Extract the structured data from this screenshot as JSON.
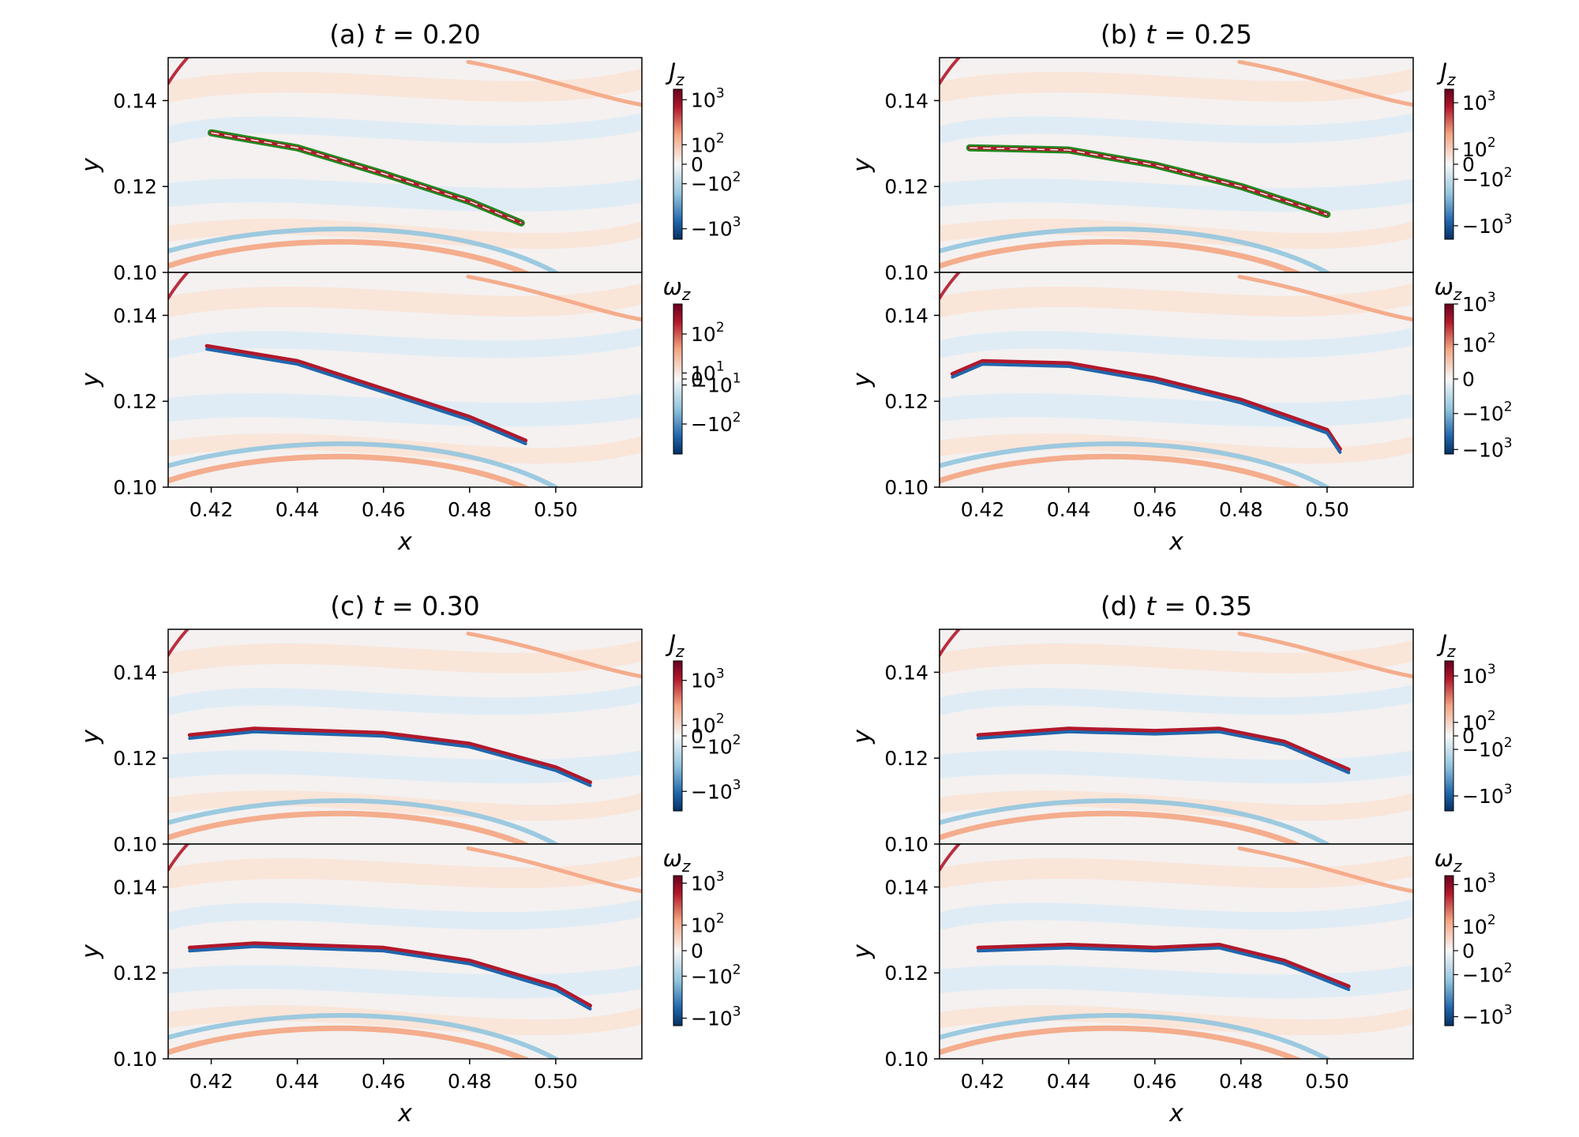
{
  "chart_data": [
    {
      "type": "heatmap",
      "title": "(a) t = 0.20",
      "title_prefix": "(a)",
      "title_t": "t",
      "title_value": "= 0.20",
      "xlabel": "x",
      "ylabel": "y",
      "xlim": [
        0.41,
        0.52
      ],
      "ylim": [
        0.1,
        0.15
      ],
      "x_ticks": [
        "0.42",
        "0.44",
        "0.46",
        "0.48",
        "0.50"
      ],
      "y_ticks": [
        "0.10",
        "0.12",
        "0.14"
      ],
      "panels": [
        {
          "field": "J_z",
          "label_main": "J",
          "label_sub": "z",
          "colorbar_ticks": [
            {
              "base": "10",
              "exp": "3"
            },
            {
              "base": "10",
              "exp": "2"
            },
            {
              "base": "0",
              "exp": ""
            },
            {
              "base": "−10",
              "exp": "2"
            },
            {
              "base": "−10",
              "exp": "3"
            }
          ],
          "colorbar_tick_fracs": [
            0.07,
            0.37,
            0.5,
            0.63,
            0.93
          ],
          "sheet": [
            [
              0.42,
              0.1325
            ],
            [
              0.44,
              0.129
            ],
            [
              0.46,
              0.123
            ],
            [
              0.48,
              0.1165
            ],
            [
              0.492,
              0.1115
            ]
          ],
          "sheet_marked": true
        },
        {
          "field": "ω_z",
          "label_main": "ω",
          "label_sub": "z",
          "colorbar_ticks": [
            {
              "base": "10",
              "exp": "2"
            },
            {
              "base": "10",
              "exp": "1"
            },
            {
              "base": "0",
              "exp": ""
            },
            {
              "base": "−10",
              "exp": "1"
            },
            {
              "base": "−10",
              "exp": "2"
            }
          ],
          "colorbar_tick_fracs": [
            0.2,
            0.46,
            0.5,
            0.54,
            0.8
          ],
          "sheet": [
            [
              0.419,
              0.1325
            ],
            [
              0.44,
              0.129
            ],
            [
              0.46,
              0.1225
            ],
            [
              0.48,
              0.116
            ],
            [
              0.493,
              0.1105
            ]
          ],
          "sheet_marked": false
        }
      ]
    },
    {
      "type": "heatmap",
      "title": "(b) t = 0.25",
      "title_prefix": "(b)",
      "title_t": "t",
      "title_value": "= 0.25",
      "xlabel": "x",
      "ylabel": "y",
      "xlim": [
        0.41,
        0.52
      ],
      "ylim": [
        0.1,
        0.15
      ],
      "x_ticks": [
        "0.42",
        "0.44",
        "0.46",
        "0.48",
        "0.50"
      ],
      "y_ticks": [
        "0.10",
        "0.12",
        "0.14"
      ],
      "panels": [
        {
          "field": "J_z",
          "label_main": "J",
          "label_sub": "z",
          "colorbar_ticks": [
            {
              "base": "10",
              "exp": "3"
            },
            {
              "base": "10",
              "exp": "2"
            },
            {
              "base": "0",
              "exp": ""
            },
            {
              "base": "−10",
              "exp": "2"
            },
            {
              "base": "−10",
              "exp": "3"
            }
          ],
          "colorbar_tick_fracs": [
            0.09,
            0.4,
            0.5,
            0.6,
            0.91
          ],
          "sheet": [
            [
              0.417,
              0.129
            ],
            [
              0.44,
              0.1285
            ],
            [
              0.46,
              0.125
            ],
            [
              0.48,
              0.12
            ],
            [
              0.5,
              0.1135
            ]
          ],
          "sheet_marked": true
        },
        {
          "field": "ω_z",
          "label_main": "ω",
          "label_sub": "z",
          "colorbar_ticks": [
            {
              "base": "10",
              "exp": "3"
            },
            {
              "base": "10",
              "exp": "2"
            },
            {
              "base": "0",
              "exp": ""
            },
            {
              "base": "−10",
              "exp": "2"
            },
            {
              "base": "−10",
              "exp": "3"
            }
          ],
          "colorbar_tick_fracs": [
            0.0,
            0.27,
            0.5,
            0.73,
            0.97
          ],
          "sheet": [
            [
              0.413,
              0.126
            ],
            [
              0.42,
              0.129
            ],
            [
              0.44,
              0.1285
            ],
            [
              0.46,
              0.125
            ],
            [
              0.48,
              0.12
            ],
            [
              0.5,
              0.113
            ],
            [
              0.503,
              0.1085
            ]
          ],
          "sheet_marked": false
        }
      ]
    },
    {
      "type": "heatmap",
      "title": "(c) t = 0.30",
      "title_prefix": "(c)",
      "title_t": "t",
      "title_value": "= 0.30",
      "xlabel": "x",
      "ylabel": "y",
      "xlim": [
        0.41,
        0.52
      ],
      "ylim": [
        0.1,
        0.15
      ],
      "x_ticks": [
        "0.42",
        "0.44",
        "0.46",
        "0.48",
        "0.50"
      ],
      "y_ticks": [
        "0.10",
        "0.12",
        "0.14"
      ],
      "panels": [
        {
          "field": "J_z",
          "label_main": "J",
          "label_sub": "z",
          "colorbar_ticks": [
            {
              "base": "10",
              "exp": "3"
            },
            {
              "base": "10",
              "exp": "2"
            },
            {
              "base": "0",
              "exp": ""
            },
            {
              "base": "−10",
              "exp": "2"
            },
            {
              "base": "−10",
              "exp": "3"
            }
          ],
          "colorbar_tick_fracs": [
            0.13,
            0.43,
            0.5,
            0.57,
            0.87
          ],
          "sheet": [
            [
              0.415,
              0.125
            ],
            [
              0.43,
              0.1265
            ],
            [
              0.46,
              0.1255
            ],
            [
              0.48,
              0.123
            ],
            [
              0.5,
              0.1175
            ],
            [
              0.508,
              0.114
            ]
          ],
          "sheet_marked": false
        },
        {
          "field": "ω_z",
          "label_main": "ω",
          "label_sub": "z",
          "colorbar_ticks": [
            {
              "base": "10",
              "exp": "3"
            },
            {
              "base": "10",
              "exp": "2"
            },
            {
              "base": "0",
              "exp": ""
            },
            {
              "base": "−10",
              "exp": "2"
            },
            {
              "base": "−10",
              "exp": "3"
            }
          ],
          "colorbar_tick_fracs": [
            0.05,
            0.33,
            0.5,
            0.67,
            0.95
          ],
          "sheet": [
            [
              0.415,
              0.1255
            ],
            [
              0.43,
              0.1265
            ],
            [
              0.46,
              0.1255
            ],
            [
              0.48,
              0.1225
            ],
            [
              0.5,
              0.1165
            ],
            [
              0.508,
              0.112
            ]
          ],
          "sheet_marked": false
        }
      ]
    },
    {
      "type": "heatmap",
      "title": "(d) t = 0.35",
      "title_prefix": "(d)",
      "title_t": "t",
      "title_value": "= 0.35",
      "xlabel": "x",
      "ylabel": "y",
      "xlim": [
        0.41,
        0.52
      ],
      "ylim": [
        0.1,
        0.15
      ],
      "x_ticks": [
        "0.42",
        "0.44",
        "0.46",
        "0.48",
        "0.50"
      ],
      "y_ticks": [
        "0.10",
        "0.12",
        "0.14"
      ],
      "panels": [
        {
          "field": "J_z",
          "label_main": "J",
          "label_sub": "z",
          "colorbar_ticks": [
            {
              "base": "10",
              "exp": "3"
            },
            {
              "base": "10",
              "exp": "2"
            },
            {
              "base": "0",
              "exp": ""
            },
            {
              "base": "−10",
              "exp": "2"
            },
            {
              "base": "−10",
              "exp": "3"
            }
          ],
          "colorbar_tick_fracs": [
            0.1,
            0.41,
            0.5,
            0.59,
            0.9
          ],
          "sheet": [
            [
              0.419,
              0.125
            ],
            [
              0.44,
              0.1265
            ],
            [
              0.46,
              0.126
            ],
            [
              0.475,
              0.1265
            ],
            [
              0.49,
              0.1235
            ],
            [
              0.505,
              0.117
            ]
          ],
          "sheet_marked": false
        },
        {
          "field": "ω_z",
          "label_main": "ω",
          "label_sub": "z",
          "colorbar_ticks": [
            {
              "base": "10",
              "exp": "3"
            },
            {
              "base": "10",
              "exp": "2"
            },
            {
              "base": "0",
              "exp": ""
            },
            {
              "base": "−10",
              "exp": "2"
            },
            {
              "base": "−10",
              "exp": "3"
            }
          ],
          "colorbar_tick_fracs": [
            0.06,
            0.34,
            0.5,
            0.66,
            0.94
          ],
          "sheet": [
            [
              0.419,
              0.1255
            ],
            [
              0.44,
              0.1262
            ],
            [
              0.46,
              0.1255
            ],
            [
              0.475,
              0.1262
            ],
            [
              0.49,
              0.1225
            ],
            [
              0.505,
              0.1165
            ]
          ],
          "sheet_marked": false
        }
      ]
    }
  ],
  "colors": {
    "red": "#b2182b",
    "light_red": "#f4a582",
    "pale_red": "#fbe3d6",
    "blue": "#2166ac",
    "light_blue": "#92c5de",
    "pale_blue": "#deebf5",
    "green": "#1f8a1f",
    "sheet_center": "#f3f3f3"
  }
}
